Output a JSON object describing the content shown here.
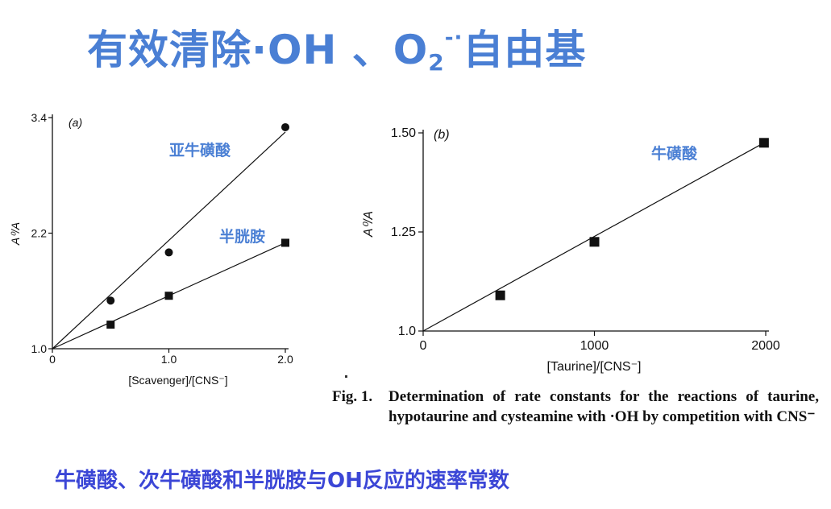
{
  "slide": {
    "title_main": "有效清除·OH 、O",
    "title_sub": "2",
    "title_sup": "-·",
    "title_end": "自由基",
    "footer": "牛磺酸、次牛磺酸和半胱胺与OH反应的速率常数"
  },
  "caption": {
    "label": "Fig. 1.",
    "text": "Determination of rate constants for the reactions of taurine, hypotaurine and cysteamine with ·OH by competition with CNS⁻"
  },
  "chart_data": [
    {
      "type": "scatter",
      "panel": "(a)",
      "xlabel": "[Scavenger]/[CNS⁻]",
      "ylabel": "A⁰/A",
      "xlim": [
        0,
        2.0
      ],
      "ylim": [
        1.0,
        3.4
      ],
      "x_ticks": [
        "0",
        "1.0",
        "2.0"
      ],
      "y_ticks": [
        "1.0",
        "2.2",
        "3.4"
      ],
      "x_tick_values": [
        0,
        1.0,
        2.0
      ],
      "y_tick_values": [
        1.0,
        2.2,
        3.4
      ],
      "series": [
        {
          "name": "亚牛磺酸",
          "marker": "circle",
          "x": [
            0.5,
            1.0,
            2.0
          ],
          "y": [
            1.5,
            2.0,
            3.3
          ],
          "fit": [
            [
              0,
              1.0
            ],
            [
              2.0,
              3.25
            ]
          ]
        },
        {
          "name": "半胱胺",
          "marker": "square",
          "x": [
            0.5,
            1.0,
            2.0
          ],
          "y": [
            1.25,
            1.55,
            2.1
          ],
          "fit": [
            [
              0,
              1.0
            ],
            [
              2.0,
              2.1
            ]
          ]
        }
      ]
    },
    {
      "type": "scatter",
      "panel": "(b)",
      "xlabel": "[Taurine]/[CNS⁻]",
      "ylabel": "A⁰/A",
      "xlim": [
        0,
        2000
      ],
      "ylim": [
        1.0,
        1.5
      ],
      "x_ticks": [
        "0",
        "1000",
        "2000"
      ],
      "y_ticks": [
        "1.0",
        "1.25",
        "1.50"
      ],
      "x_tick_values": [
        0,
        1000,
        2000
      ],
      "y_tick_values": [
        1.0,
        1.25,
        1.5
      ],
      "series": [
        {
          "name": "牛磺酸",
          "marker": "square",
          "x": [
            450,
            1000,
            1990
          ],
          "y": [
            1.09,
            1.225,
            1.475
          ],
          "fit": [
            [
              0,
              1.0
            ],
            [
              1990,
              1.475
            ]
          ]
        }
      ]
    }
  ]
}
